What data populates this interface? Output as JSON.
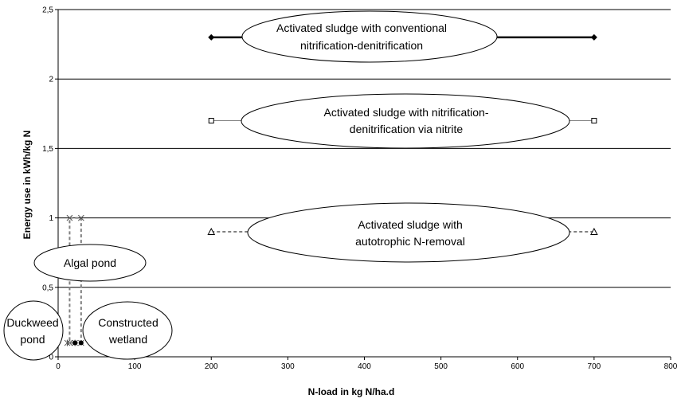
{
  "chart_data": {
    "type": "line",
    "xlabel": "N-load in kg N/ha.d",
    "ylabel": "Energy use in kWh/kg N",
    "xlim": [
      0,
      800
    ],
    "ylim": [
      0,
      2.5
    ],
    "x_ticks": [
      "0",
      "100",
      "200",
      "300",
      "400",
      "500",
      "600",
      "700",
      "800"
    ],
    "y_ticks": [
      "0",
      "0,5",
      "1",
      "1,5",
      "2",
      "2,5"
    ],
    "grid": "horizontal",
    "series": [
      {
        "label_lines": [
          "Activated sludge with conventional",
          "nitrification-denitrification"
        ],
        "x": [
          200,
          700
        ],
        "y": [
          2.3,
          2.3
        ],
        "marker": "diamond",
        "line_style": "solid-thick",
        "color": "#000000"
      },
      {
        "label_lines": [
          "Activated sludge with nitrification-",
          "denitrification via nitrite"
        ],
        "x": [
          200,
          700
        ],
        "y": [
          1.7,
          1.7
        ],
        "marker": "square",
        "line_style": "solid-thin",
        "color": "#808080"
      },
      {
        "label_lines": [
          "Activated sludge with",
          "autotrophic N-removal"
        ],
        "x": [
          200,
          700
        ],
        "y": [
          0.9,
          0.9
        ],
        "marker": "triangle",
        "line_style": "dashed",
        "color": "#808080"
      },
      {
        "label_lines": [
          "Algal pond"
        ],
        "x": [
          15,
          30,
          30,
          15,
          15
        ],
        "y": [
          1.0,
          1.0,
          0.1,
          0.1,
          1.0
        ],
        "marker": "x",
        "line_style": "dashed",
        "color": "#808080"
      },
      {
        "label_lines": [
          "Duckweed",
          "pond"
        ],
        "x": [
          12,
          22
        ],
        "y": [
          0.1,
          0.1
        ],
        "marker": "star",
        "line_style": "dashed",
        "color": "#808080"
      },
      {
        "label_lines": [
          "Constructed",
          "wetland"
        ],
        "x": [
          22,
          30
        ],
        "y": [
          0.1,
          0.1
        ],
        "marker": "circle",
        "line_style": "dashed",
        "color": "#808080"
      }
    ]
  }
}
